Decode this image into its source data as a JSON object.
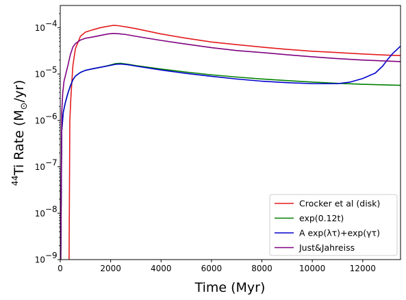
{
  "chart_data": {
    "type": "line",
    "title": "",
    "xlabel": "Time (Myr)",
    "ylabel": {
      "prefix_sup": "44",
      "main": "Ti Rate (M",
      "sub": "⊙",
      "suffix": "/yr)"
    },
    "xlim": [
      0,
      13500
    ],
    "ylim": [
      1e-09,
      0.0003
    ],
    "yscale": "log",
    "xticks": [
      0,
      2000,
      4000,
      6000,
      8000,
      10000,
      12000
    ],
    "yticks": [
      {
        "value": 1e-09,
        "label": "10",
        "exp": "−9"
      },
      {
        "value": 1e-08,
        "label": "10",
        "exp": "−8"
      },
      {
        "value": 1e-07,
        "label": "10",
        "exp": "−7"
      },
      {
        "value": 1e-06,
        "label": "10",
        "exp": "−6"
      },
      {
        "value": 1e-05,
        "label": "10",
        "exp": "−5"
      },
      {
        "value": 0.0001,
        "label": "10",
        "exp": "−4"
      }
    ],
    "grid": false,
    "legend": {
      "placement": "bottom-right"
    },
    "series": [
      {
        "name": "Crocker et al (disk)",
        "color": "#e41a1c",
        "x": [
          350,
          380,
          420,
          500,
          600,
          800,
          1000,
          1300,
          1600,
          1900,
          2100,
          2300,
          2600,
          3000,
          4000,
          5000,
          6000,
          7000,
          8000,
          9000,
          10000,
          11000,
          12000,
          13000,
          13500
        ],
        "y": [
          1e-09,
          1e-06,
          3e-06,
          1.5e-05,
          3.5e-05,
          6.5e-05,
          8e-05,
          9e-05,
          0.0001,
          0.000107,
          0.000112,
          0.00011,
          0.000104,
          9.5e-05,
          7.3e-05,
          5.9e-05,
          4.9e-05,
          4.3e-05,
          3.8e-05,
          3.4e-05,
          3.1e-05,
          2.9e-05,
          2.7e-05,
          2.55e-05,
          2.5e-05
        ]
      },
      {
        "name": "exp(0.12t)",
        "color": "#008000",
        "x": [
          20,
          60,
          120,
          200,
          300,
          400,
          500,
          600,
          800,
          1000,
          1300,
          1600,
          1900,
          2200,
          2400,
          2700,
          3000,
          4000,
          5000,
          6000,
          7000,
          8000,
          9000,
          10000,
          11000,
          12000,
          13000,
          13500
        ],
        "y": [
          1e-09,
          6e-07,
          1.5e-06,
          2.4e-06,
          3.8e-06,
          5.5e-06,
          7.5e-06,
          9e-06,
          1.08e-05,
          1.2e-05,
          1.3e-05,
          1.4e-05,
          1.52e-05,
          1.68e-05,
          1.7e-05,
          1.62e-05,
          1.52e-05,
          1.28e-05,
          1.1e-05,
          9.6e-06,
          8.6e-06,
          7.8e-06,
          7.2e-06,
          6.7e-06,
          6.3e-06,
          6e-06,
          5.8e-06,
          5.7e-06
        ]
      },
      {
        "name": "A exp(λτ)+exp(γτ)",
        "color": "#0000cd",
        "x": [
          20,
          60,
          120,
          200,
          300,
          400,
          500,
          600,
          800,
          1000,
          1300,
          1600,
          1900,
          2200,
          2400,
          2700,
          3000,
          4000,
          5000,
          6000,
          7000,
          8000,
          9000,
          10000,
          11000,
          11500,
          12000,
          12500,
          12800,
          13000,
          13200,
          13500
        ],
        "y": [
          1e-09,
          6e-07,
          1.5e-06,
          2.4e-06,
          3.8e-06,
          5.5e-06,
          7.5e-06,
          9e-06,
          1.08e-05,
          1.2e-05,
          1.3e-05,
          1.4e-05,
          1.5e-05,
          1.62e-05,
          1.64e-05,
          1.58e-05,
          1.48e-05,
          1.22e-05,
          1.03e-05,
          8.9e-06,
          7.8e-06,
          7e-06,
          6.5e-06,
          6.2e-06,
          6.2e-06,
          6.7e-06,
          8e-06,
          1.05e-05,
          1.5e-05,
          2.1e-05,
          2.8e-05,
          4e-05
        ]
      },
      {
        "name": "Just&Jahreiss",
        "color": "#800080",
        "x": [
          20,
          60,
          100,
          150,
          200,
          300,
          400,
          500,
          600,
          800,
          1000,
          1300,
          1600,
          1900,
          2100,
          2300,
          2600,
          3000,
          4000,
          5000,
          6000,
          7000,
          8000,
          9000,
          10000,
          11000,
          12000,
          13000,
          13500
        ],
        "y": [
          1e-09,
          1.5e-06,
          4e-06,
          7e-06,
          9e-06,
          1.5e-05,
          2.6e-05,
          3.8e-05,
          4.5e-05,
          5.4e-05,
          5.9e-05,
          6.3e-05,
          6.8e-05,
          7.3e-05,
          7.5e-05,
          7.4e-05,
          7.1e-05,
          6.5e-05,
          5.3e-05,
          4.4e-05,
          3.7e-05,
          3.2e-05,
          2.9e-05,
          2.6e-05,
          2.35e-05,
          2.15e-05,
          2e-05,
          1.9e-05,
          1.85e-05
        ]
      }
    ]
  }
}
